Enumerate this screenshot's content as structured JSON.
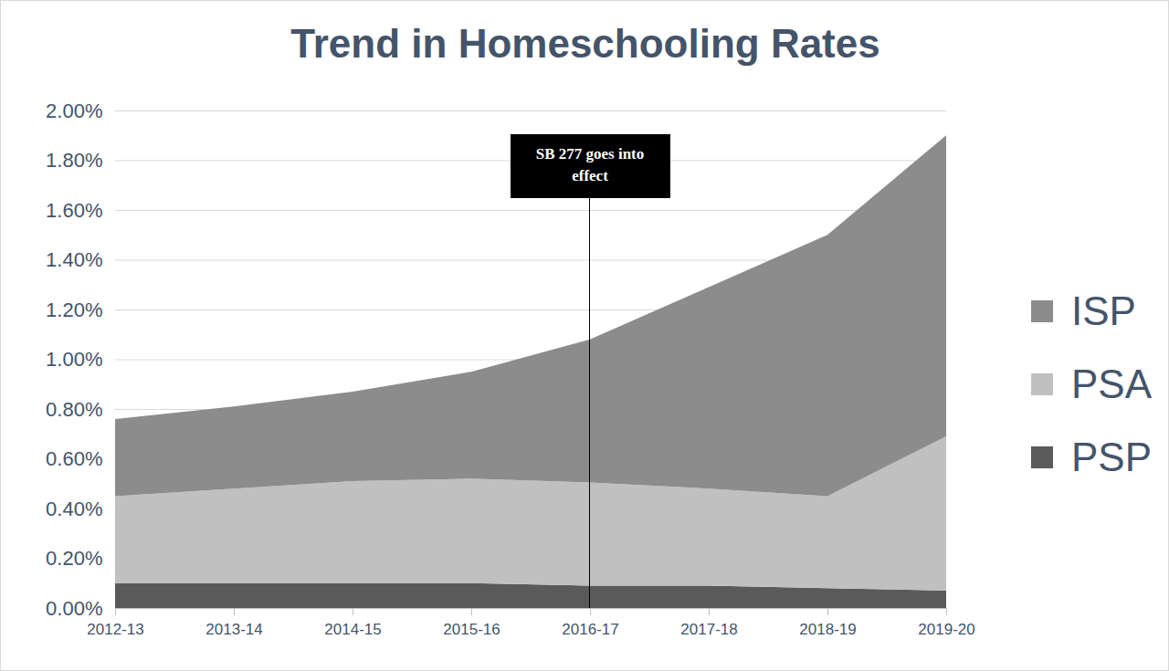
{
  "chart_data": {
    "type": "area",
    "title": "Trend in Homeschooling Rates",
    "categories": [
      "2012-13",
      "2013-14",
      "2014-15",
      "2015-16",
      "2016-17",
      "2017-18",
      "2018-19",
      "2019-20"
    ],
    "series": [
      {
        "name": "ISP",
        "color": "#8c8c8c",
        "values": [
          0.31,
          0.33,
          0.36,
          0.43,
          0.575,
          0.81,
          1.05,
          1.21
        ]
      },
      {
        "name": "PSA",
        "color": "#c0c0c0",
        "values": [
          0.35,
          0.38,
          0.41,
          0.42,
          0.415,
          0.39,
          0.37,
          0.62
        ]
      },
      {
        "name": "PSP",
        "color": "#5a5a5a",
        "values": [
          0.1,
          0.1,
          0.1,
          0.1,
          0.09,
          0.09,
          0.08,
          0.07
        ]
      }
    ],
    "stacked": true,
    "ylim": [
      0,
      2
    ],
    "yticks": [
      {
        "value": 0,
        "label": "0.00%"
      },
      {
        "value": 0.2,
        "label": "0.20%"
      },
      {
        "value": 0.4,
        "label": "0.40%"
      },
      {
        "value": 0.6,
        "label": "0.60%"
      },
      {
        "value": 0.8,
        "label": "0.80%"
      },
      {
        "value": 1.0,
        "label": "1.00%"
      },
      {
        "value": 1.2,
        "label": "1.20%"
      },
      {
        "value": 1.4,
        "label": "1.40%"
      },
      {
        "value": 1.6,
        "label": "1.60%"
      },
      {
        "value": 1.8,
        "label": "1.80%"
      },
      {
        "value": 2.0,
        "label": "2.00%"
      }
    ],
    "grid": true,
    "legend": "right",
    "annotations": [
      {
        "x": "2016-17",
        "text": "SB 277 goes into effect"
      }
    ]
  }
}
